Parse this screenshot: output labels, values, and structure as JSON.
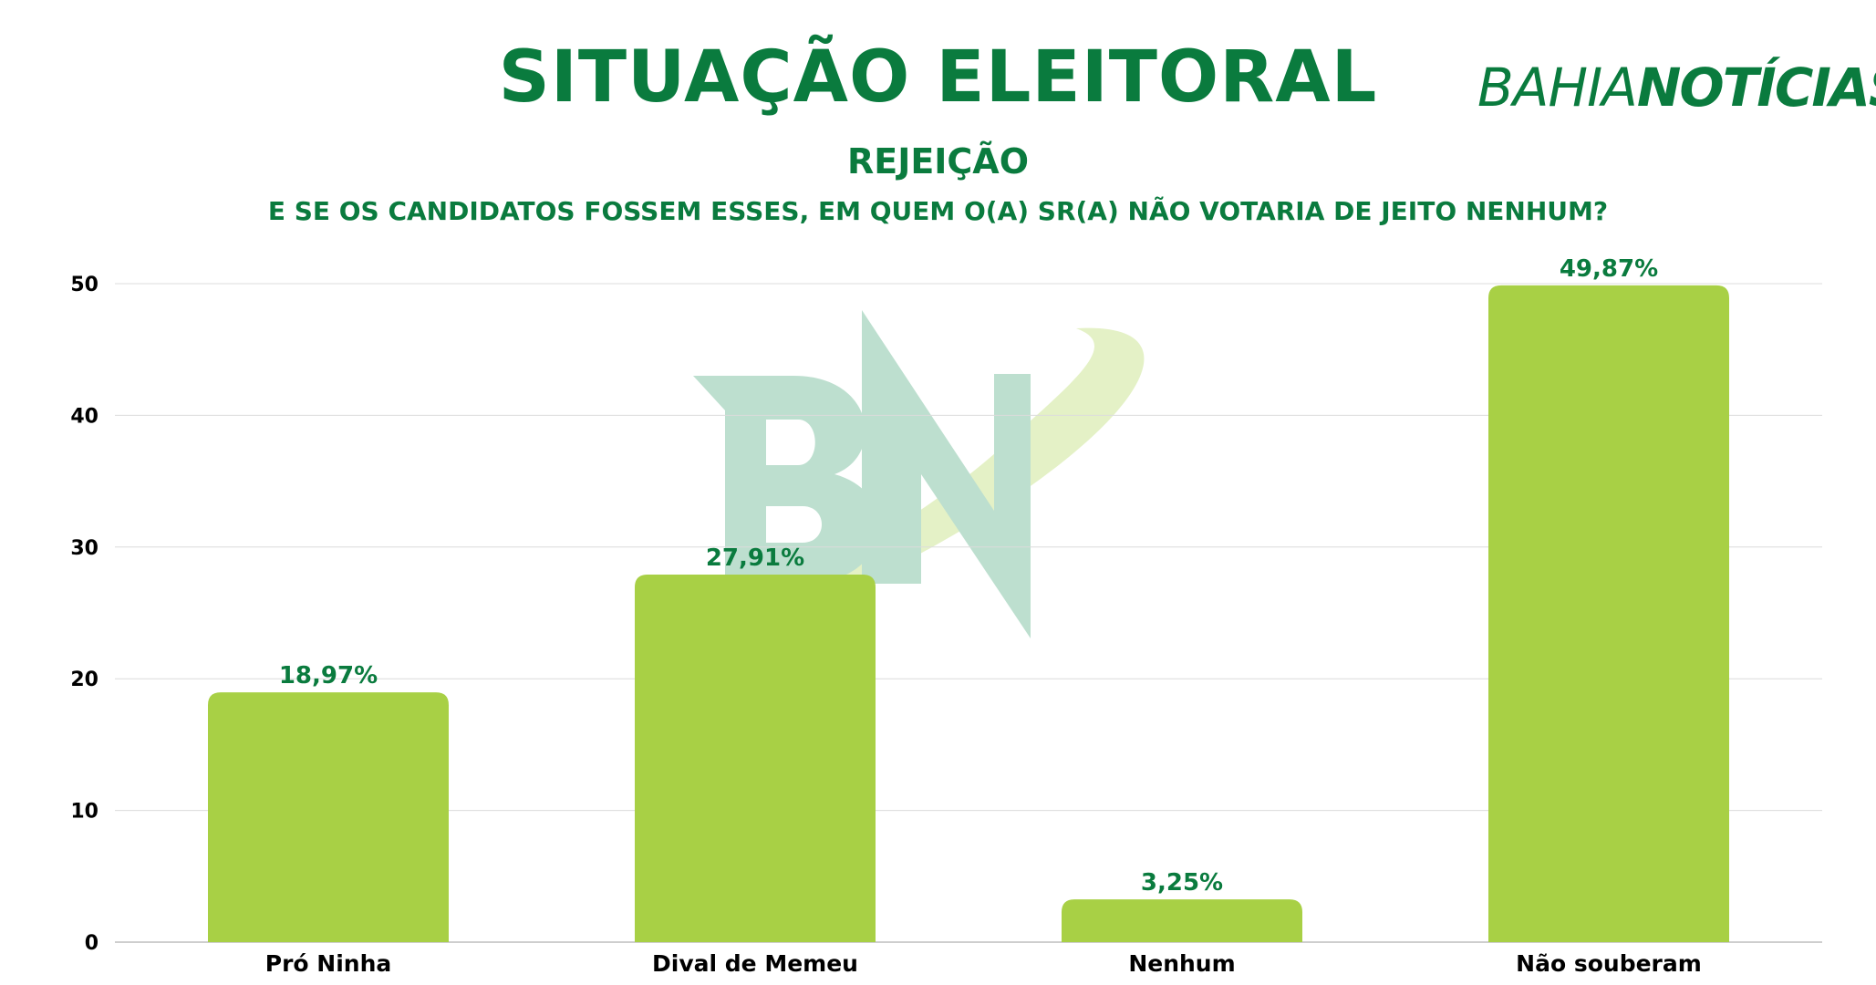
{
  "header": {
    "title": "SITUAÇÃO ELEITORAL",
    "subtitle": "REJEIÇÃO",
    "question": "E SE OS CANDIDATOS FOSSEM ESSES, EM QUEM O(A) SR(A) NÃO VOTARIA DE JEITO NENHUM?"
  },
  "logo": {
    "part1": "BAHIA",
    "part2": "NOTÍCIAS"
  },
  "colors": {
    "accent": "#0a7b3e",
    "bar": "#a8d045",
    "watermark_green": "#bddfcf",
    "watermark_swoosh": "#e4f1c6"
  },
  "chart_data": {
    "type": "bar",
    "categories": [
      "Pró Ninha",
      "Dival de Memeu",
      "Nenhum",
      "Não souberam"
    ],
    "values": [
      18.97,
      27.91,
      3.25,
      49.87
    ],
    "data_labels": [
      "18,97%",
      "27,91%",
      "3,25%",
      "49,87%"
    ],
    "yticks": [
      0,
      10,
      20,
      30,
      40,
      50
    ],
    "ylim": [
      0,
      50
    ],
    "grid": true,
    "legend": "none"
  }
}
